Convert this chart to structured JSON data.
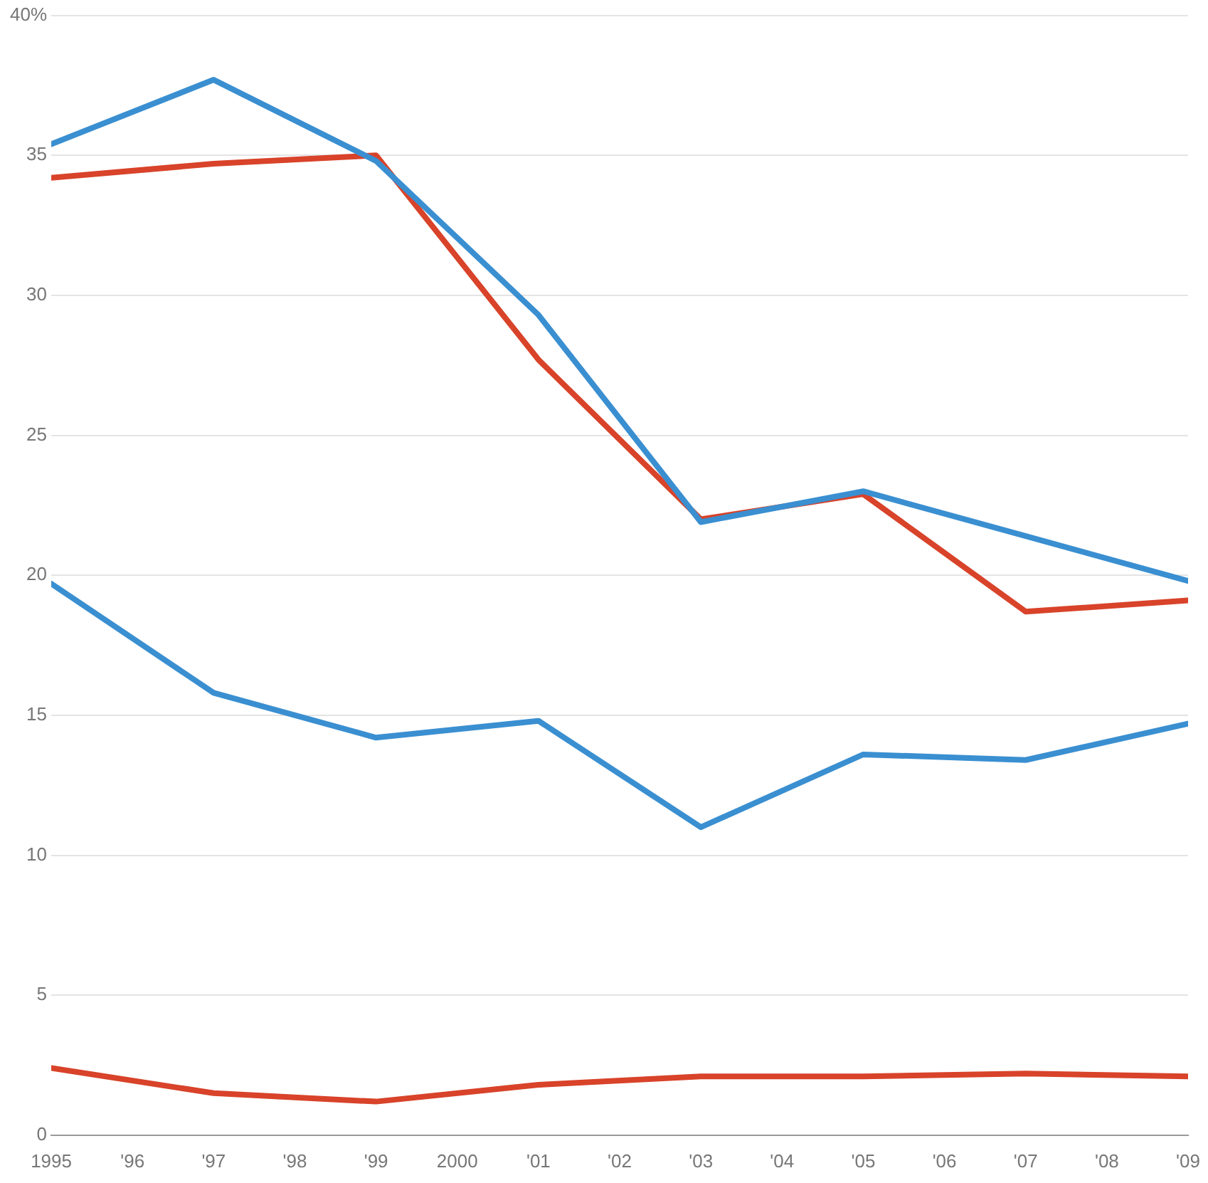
{
  "chart_data": {
    "type": "line",
    "x": [
      1995,
      1997,
      1999,
      2001,
      2003,
      2005,
      2007,
      2009
    ],
    "series": [
      {
        "color": "#3a8fd1",
        "values": [
          35.4,
          37.7,
          34.8,
          29.3,
          21.9,
          23.0,
          21.4,
          19.8
        ]
      },
      {
        "color": "#d8432a",
        "values": [
          34.2,
          34.7,
          35.0,
          27.7,
          22.0,
          22.9,
          18.7,
          19.1
        ]
      },
      {
        "color": "#3a8fd1",
        "values": [
          19.7,
          15.8,
          14.2,
          14.8,
          11.0,
          13.6,
          13.4,
          14.7
        ]
      },
      {
        "color": "#d8432a",
        "values": [
          2.4,
          1.5,
          1.2,
          1.8,
          2.1,
          2.1,
          2.2,
          2.1
        ]
      }
    ],
    "xlim": [
      1995,
      2009
    ],
    "xticks": [
      1995,
      {
        "value": 1996,
        "label": "'96"
      },
      {
        "value": 1997,
        "label": "'97"
      },
      {
        "value": 1998,
        "label": "'98"
      },
      {
        "value": 1999,
        "label": "'99"
      },
      2000,
      {
        "value": 2001,
        "label": "'01"
      },
      {
        "value": 2002,
        "label": "'02"
      },
      {
        "value": 2003,
        "label": "'03"
      },
      {
        "value": 2004,
        "label": "'04"
      },
      {
        "value": 2005,
        "label": "'05"
      },
      {
        "value": 2006,
        "label": "'06"
      },
      {
        "value": 2007,
        "label": "'07"
      },
      {
        "value": 2008,
        "label": "'08"
      },
      {
        "value": 2009,
        "label": "'09"
      }
    ],
    "ylim": [
      0,
      40
    ],
    "yticks": [
      0,
      5,
      10,
      15,
      20,
      25,
      30,
      35,
      {
        "value": 40,
        "label": "40%"
      }
    ],
    "grid": "y",
    "legend": false,
    "marker": "none",
    "line_style": "solid"
  }
}
